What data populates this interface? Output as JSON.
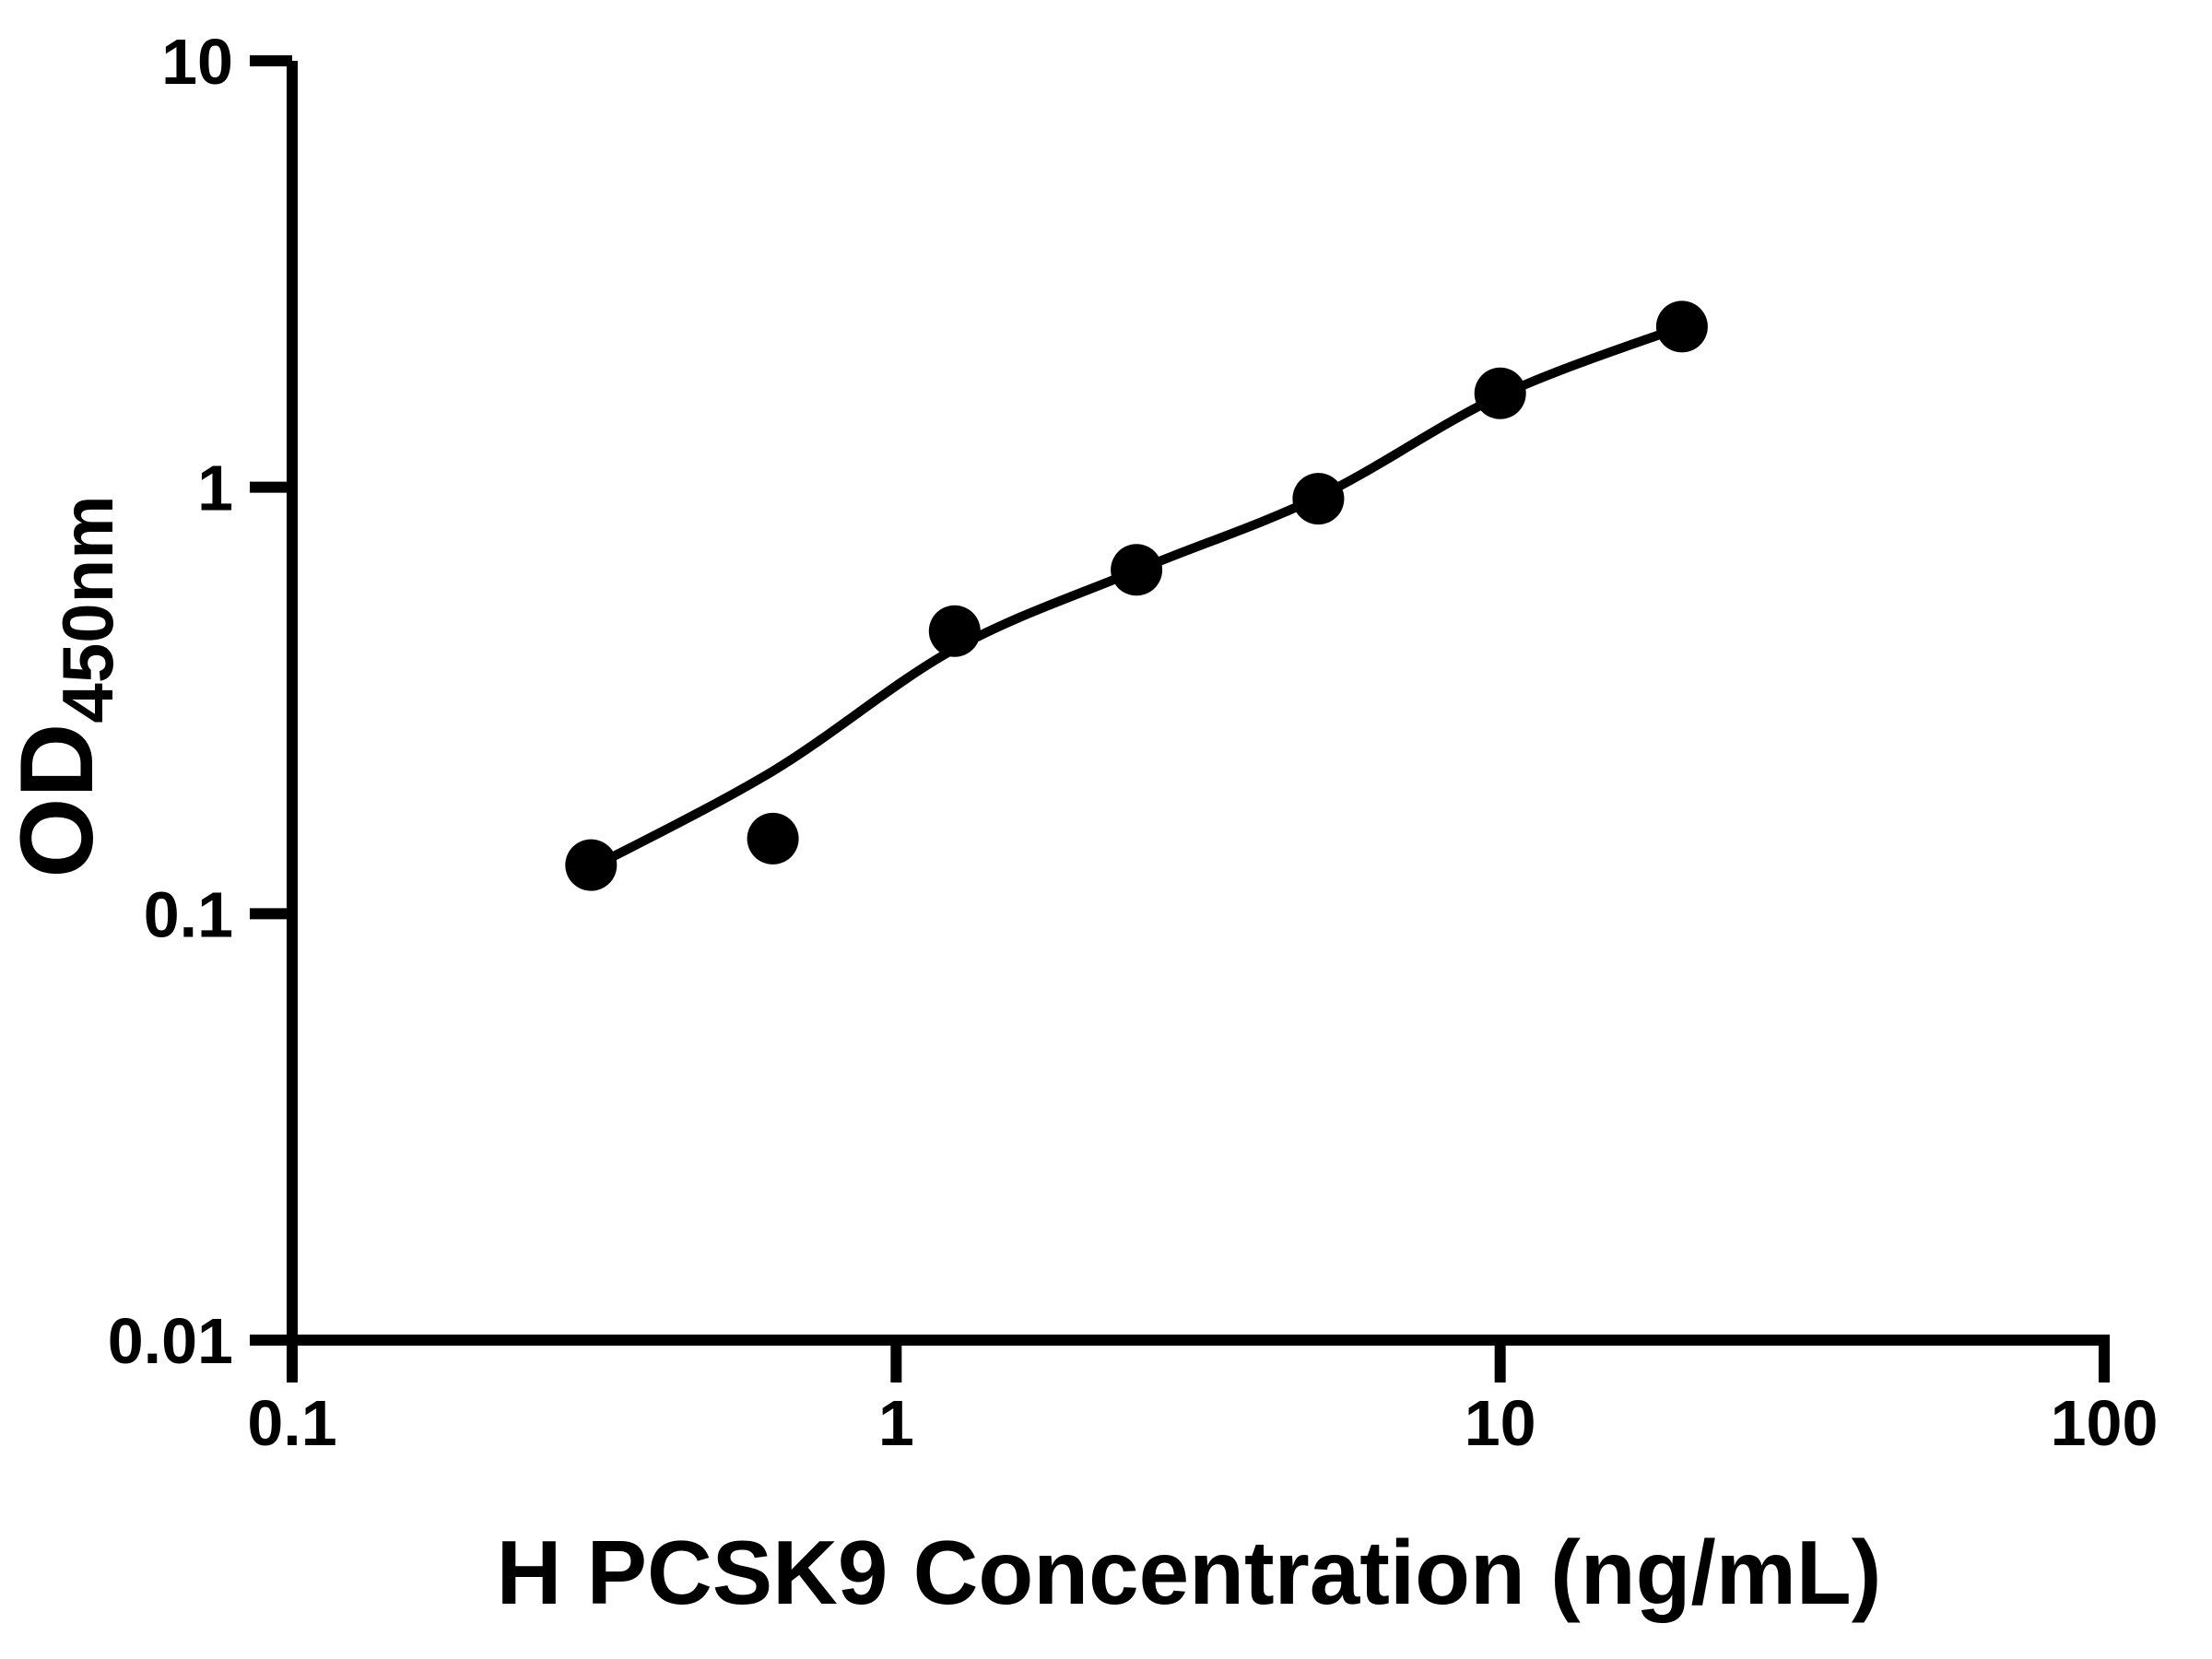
{
  "chart_data": {
    "type": "scatter",
    "title": "",
    "xlabel": "H PCSK9 Concentration (ng/mL)",
    "ylabel_main": "OD",
    "ylabel_sub": "450nm",
    "x_scale": "log",
    "y_scale": "log",
    "xlim": [
      0.1,
      100
    ],
    "ylim": [
      0.01,
      10
    ],
    "x_ticks": [
      0.1,
      1,
      10,
      100
    ],
    "x_tick_labels": [
      "0.1",
      "1",
      "10",
      "100"
    ],
    "y_ticks": [
      0.01,
      0.1,
      1,
      10
    ],
    "y_tick_labels": [
      "0.01",
      "0.1",
      "1",
      "10"
    ],
    "grid": false,
    "legend": "none",
    "marker": "filled-circle",
    "series": [
      {
        "name": "standard-points",
        "color": "#000000",
        "points": [
          {
            "x": 0.3125,
            "y": 0.13
          },
          {
            "x": 0.625,
            "y": 0.15
          },
          {
            "x": 1.25,
            "y": 0.46
          },
          {
            "x": 2.5,
            "y": 0.64
          },
          {
            "x": 5,
            "y": 0.94
          },
          {
            "x": 10,
            "y": 1.66
          },
          {
            "x": 20,
            "y": 2.38
          }
        ]
      }
    ],
    "fit_curve": {
      "name": "standard-curve-fit",
      "color": "#000000",
      "points": [
        {
          "x": 0.3125,
          "y": 0.128
        },
        {
          "x": 0.625,
          "y": 0.216
        },
        {
          "x": 1.25,
          "y": 0.418
        },
        {
          "x": 2.5,
          "y": 0.638
        },
        {
          "x": 5,
          "y": 0.949
        },
        {
          "x": 10,
          "y": 1.64
        },
        {
          "x": 20,
          "y": 2.38
        }
      ]
    },
    "colors": {
      "foreground": "#000000",
      "background": "#ffffff"
    }
  }
}
